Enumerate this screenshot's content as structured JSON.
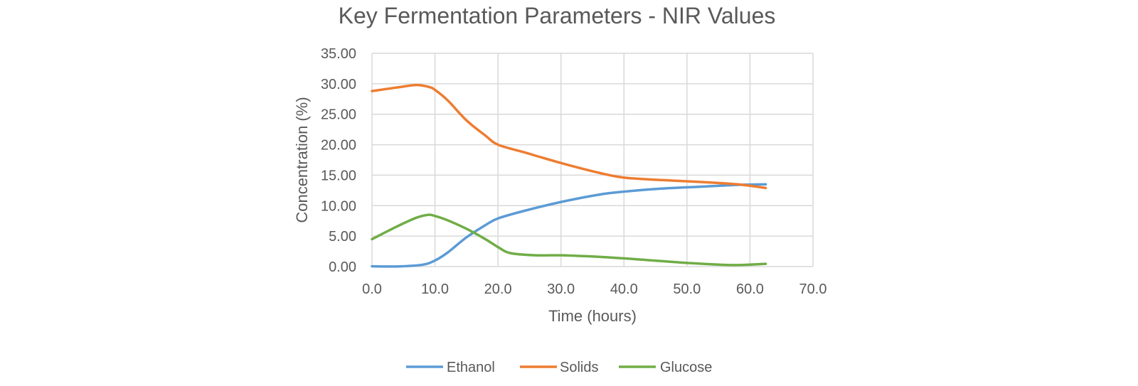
{
  "chart_data": {
    "type": "line",
    "title": "Key Fermentation Parameters - NIR Values",
    "xlabel": "Time (hours)",
    "ylabel": "Concentration (%)",
    "xlim": [
      0,
      70
    ],
    "ylim": [
      0,
      35
    ],
    "x_ticks": [
      "0.0",
      "10.0",
      "20.0",
      "30.0",
      "40.0",
      "50.0",
      "60.0",
      "70.0"
    ],
    "y_ticks": [
      "0.00",
      "5.00",
      "10.00",
      "15.00",
      "20.00",
      "25.00",
      "30.00",
      "35.00"
    ],
    "grid": true,
    "legend_position": "bottom",
    "series": [
      {
        "name": "Ethanol",
        "color": "#5b9bd5",
        "x": [
          0,
          4,
          8,
          10,
          12,
          15,
          18,
          20,
          24,
          30,
          36,
          40,
          46,
          52,
          58,
          62.5
        ],
        "y": [
          0.05,
          0.02,
          0.3,
          1.0,
          2.3,
          4.8,
          6.8,
          7.9,
          9.1,
          10.6,
          11.8,
          12.3,
          12.8,
          13.1,
          13.4,
          13.5
        ]
      },
      {
        "name": "Solids",
        "color": "#ed7d31",
        "x": [
          0,
          4,
          7,
          9,
          10,
          12,
          15,
          18,
          20,
          24,
          30,
          36,
          40,
          46,
          52,
          58,
          62.5
        ],
        "y": [
          28.8,
          29.4,
          29.8,
          29.5,
          29.0,
          27.3,
          24.0,
          21.5,
          20.0,
          18.8,
          17.0,
          15.4,
          14.6,
          14.2,
          13.9,
          13.5,
          12.9
        ]
      },
      {
        "name": "Glucose",
        "color": "#70ad47",
        "x": [
          0,
          4,
          7,
          9,
          10,
          12,
          15,
          18,
          20,
          22,
          26,
          30,
          36,
          42,
          50,
          57,
          62.5
        ],
        "y": [
          4.5,
          6.6,
          8.0,
          8.5,
          8.3,
          7.6,
          6.2,
          4.5,
          3.2,
          2.2,
          1.85,
          1.85,
          1.6,
          1.2,
          0.6,
          0.25,
          0.45
        ]
      }
    ]
  }
}
